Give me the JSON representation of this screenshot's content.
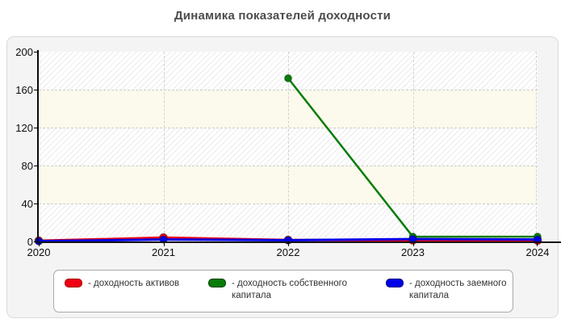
{
  "page": {
    "title": "Динамика показателей доходности"
  },
  "chart_data": {
    "type": "line",
    "title": "Динамика показателей доходности",
    "x": [
      "2020",
      "2021",
      "2022",
      "2023",
      "2024"
    ],
    "xlabel": "",
    "ylabel": "",
    "ylim": [
      0,
      200
    ],
    "yticks": [
      0,
      40,
      80,
      120,
      160,
      200
    ],
    "grid": "horizontal dashed gridlines every 40 units, vertical dashed gridlines at each year, alternating hatched/cream background bands",
    "legend_position": "bottom",
    "series": [
      {
        "name": "доходность активов",
        "color": "#ee0011",
        "marker": "circle",
        "values": [
          0.7,
          4,
          1.5,
          1.2,
          1
        ]
      },
      {
        "name": "доходность собственного капитала",
        "color": "#077c07",
        "marker": "circle",
        "values": [
          null,
          null,
          172,
          5,
          5
        ]
      },
      {
        "name": "доходность заемного капитала",
        "color": "#0000e8",
        "marker": "circle",
        "values": [
          0.3,
          2,
          1.3,
          2.5,
          2
        ]
      }
    ]
  },
  "legend": {
    "items": [
      {
        "label": "- доходность активов",
        "color": "#ee0011",
        "border": "#a30000"
      },
      {
        "label": "- доходность собственного капитала",
        "color": "#077c07",
        "border": "#033f03"
      },
      {
        "label": "- доходность заемного капитала",
        "color": "#0000e8",
        "border": "#00007f"
      }
    ]
  }
}
